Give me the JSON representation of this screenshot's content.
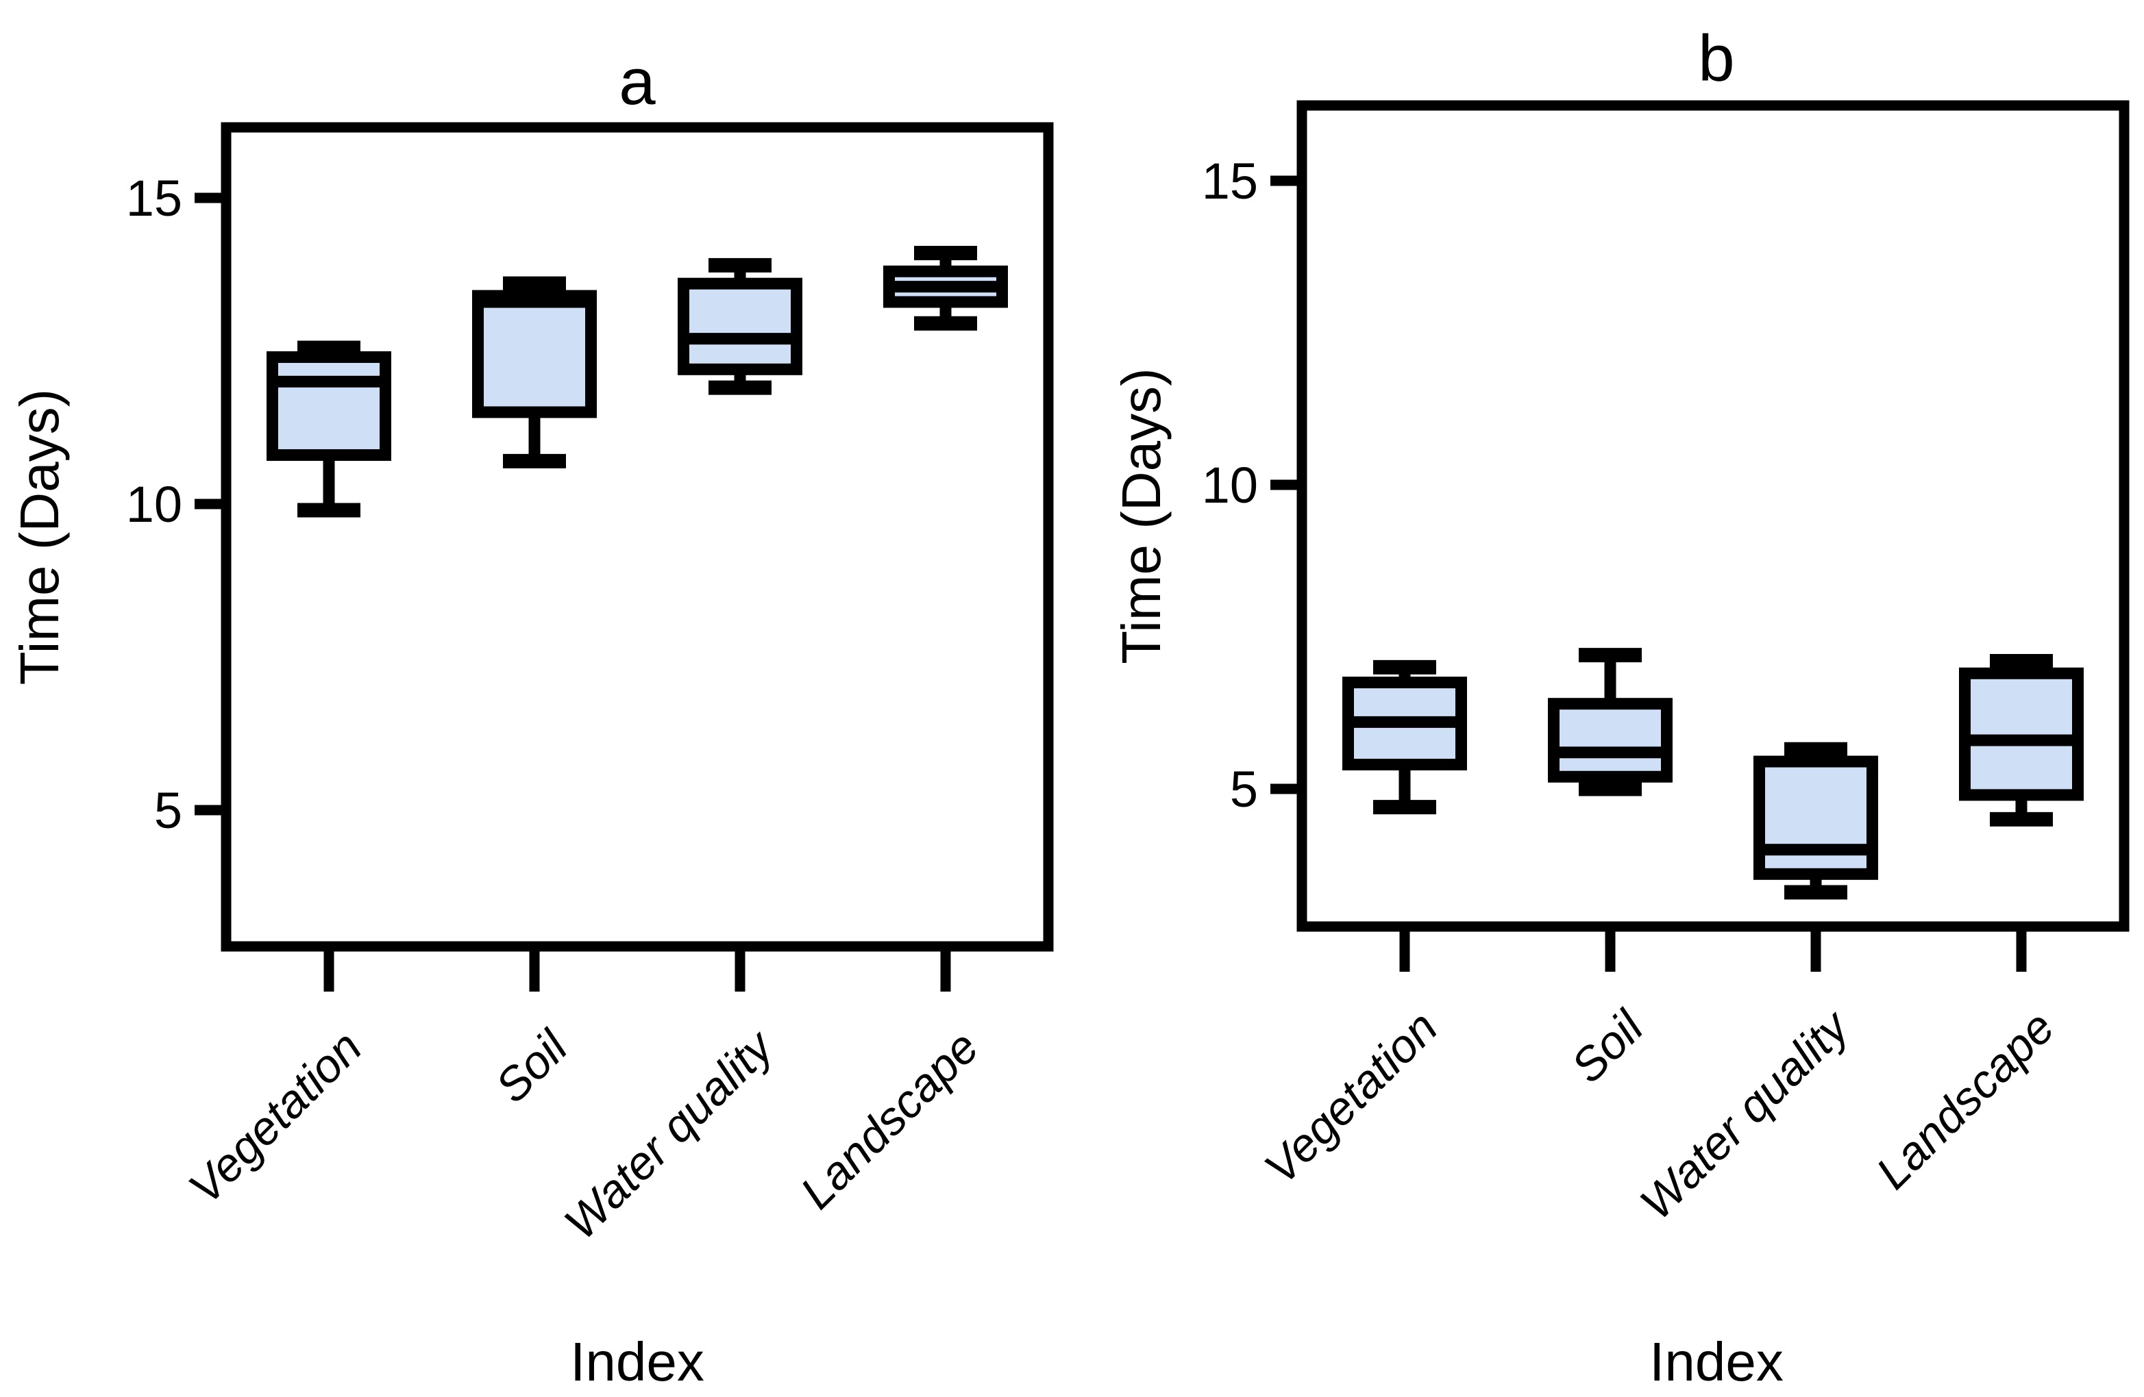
{
  "figure": {
    "background": "#ffffff",
    "accent_stroke": "#000000",
    "box_fill": "#cfe0f6"
  },
  "chart_data": {
    "type": "boxplot",
    "panels": [
      {
        "title": "a",
        "xlabel": "Index",
        "ylabel": "Time (Days)",
        "categories": [
          "Vegetation",
          "Soil",
          "Water quality",
          "Landscape"
        ],
        "yticks": [
          5,
          10,
          15
        ],
        "ylim": [
          2.8,
          16.2
        ],
        "grid": false,
        "boxes": [
          {
            "category": "Vegetation",
            "min": 9.9,
            "q1": 10.8,
            "median": 12.0,
            "q3": 12.4,
            "max": 12.55
          },
          {
            "category": "Soil",
            "min": 10.7,
            "q1": 11.5,
            "median": 13.3,
            "q3": 13.4,
            "max": 13.6
          },
          {
            "category": "Water quality",
            "min": 11.9,
            "q1": 12.2,
            "median": 12.7,
            "q3": 13.6,
            "max": 13.9
          },
          {
            "category": "Landscape",
            "min": 12.95,
            "q1": 13.3,
            "median": 13.55,
            "q3": 13.8,
            "max": 14.1
          }
        ]
      },
      {
        "title": "b",
        "xlabel": "Index",
        "ylabel": "Time (Days)",
        "categories": [
          "Vegetation",
          "Soil",
          "Water quality",
          "Landscape"
        ],
        "yticks": [
          5,
          10,
          15
        ],
        "ylim": [
          2.8,
          16.2
        ],
        "grid": false,
        "boxes": [
          {
            "category": "Vegetation",
            "min": 4.7,
            "q1": 5.4,
            "median": 6.1,
            "q3": 6.75,
            "max": 7.0
          },
          {
            "category": "Soil",
            "min": 5.0,
            "q1": 5.2,
            "median": 5.6,
            "q3": 6.4,
            "max": 7.2
          },
          {
            "category": "Water quality",
            "min": 3.3,
            "q1": 3.6,
            "median": 4.0,
            "q3": 5.45,
            "max": 5.65
          },
          {
            "category": "Landscape",
            "min": 4.5,
            "q1": 4.9,
            "median": 5.8,
            "q3": 6.9,
            "max": 7.1
          }
        ]
      }
    ]
  }
}
